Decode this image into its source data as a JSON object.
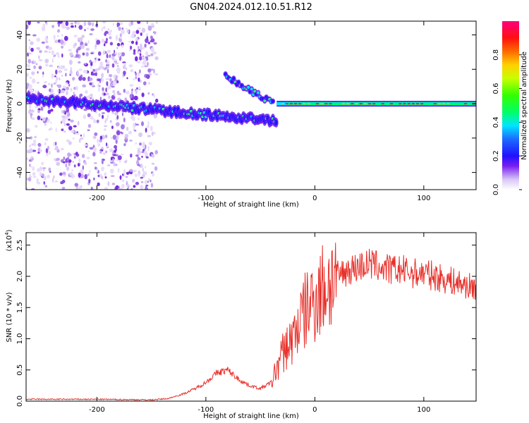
{
  "title": "GN04.2024.012.10.51.R12",
  "chart_data": [
    {
      "type": "heatmap",
      "xlabel": "Height of straight line (km)",
      "ylabel": "Frequency (Hz)",
      "xlim": [
        -265,
        148
      ],
      "ylim": [
        -50,
        48
      ],
      "xticks": [
        -200,
        -100,
        0,
        100
      ],
      "yticks": [
        -40,
        -20,
        0,
        20,
        40
      ],
      "colorbar": {
        "label": "Normalized spectral amplitude",
        "ticks": [
          "0.0",
          "0.2",
          "0.4",
          "0.6",
          "0.8"
        ],
        "range": [
          0,
          1
        ]
      },
      "features": [
        {
          "name": "noise region",
          "x_range": [
            -265,
            -145
          ],
          "freq_range": [
            -50,
            48
          ],
          "amplitude": "low"
        },
        {
          "name": "lower band",
          "x_range": [
            -265,
            -35
          ],
          "freq_start": 3,
          "freq_end": -10
        },
        {
          "name": "upper branch",
          "x_range": [
            -82,
            -38
          ],
          "freq_start": 16,
          "freq_end": 0
        },
        {
          "name": "main line",
          "x_range": [
            -35,
            148
          ],
          "freq_start": 0,
          "freq_end": 0,
          "amplitude": "high"
        }
      ]
    },
    {
      "type": "line",
      "xlabel": "Height of straight line (km)",
      "ylabel": "SNR (10 * v/v)",
      "yscale_label": "(x10",
      "yscale_exp": "4",
      "ylabel_suffix": ")",
      "xlim": [
        -265,
        148
      ],
      "ylim": [
        0,
        2.7
      ],
      "xticks": [
        -200,
        -100,
        0,
        100
      ],
      "yticks": [
        "0.0",
        "0.5",
        "1.0",
        "1.5",
        "2.0",
        "2.5"
      ],
      "color": "#e8302a",
      "series": [
        {
          "x": [
            -265,
            -200,
            -150,
            -135,
            -120,
            -110,
            -100,
            -90,
            -80,
            -70,
            -60,
            -50,
            -40,
            -30,
            -25,
            -20,
            -15,
            -10,
            -5,
            0,
            10,
            20,
            30,
            40,
            50,
            60,
            70,
            80,
            90,
            100,
            110,
            120,
            130,
            140,
            148
          ],
          "values": [
            0.03,
            0.03,
            0.02,
            0.04,
            0.12,
            0.2,
            0.3,
            0.45,
            0.5,
            0.35,
            0.25,
            0.2,
            0.3,
            0.75,
            0.9,
            1.0,
            1.25,
            1.4,
            1.55,
            1.65,
            1.85,
            2.0,
            2.1,
            2.15,
            2.2,
            2.15,
            2.1,
            2.1,
            2.05,
            2.05,
            2.0,
            1.95,
            1.9,
            1.85,
            1.8
          ]
        }
      ]
    }
  ]
}
